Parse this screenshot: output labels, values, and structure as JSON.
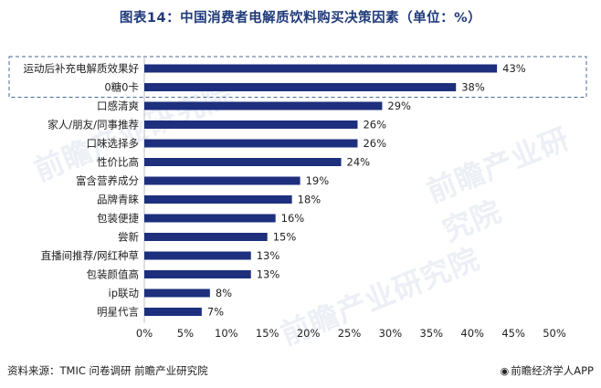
{
  "title": "图表14：中国消费者电解质饮料购买决策因素（单位：%）",
  "source": "资料来源：TMIC 问卷调研 前瞻产业研究院",
  "brand": "前瞻经济学人APP",
  "watermark": "前瞻产业研究院",
  "colors": {
    "bar": "#1e2f7d",
    "highlight_border": "#4a6a96",
    "title": "#1f3a7a"
  },
  "chart_data": {
    "type": "bar",
    "orientation": "horizontal",
    "categories": [
      "运动后补充电解质效果好",
      "0糖0卡",
      "口感清爽",
      "家人/朋友/同事推荐",
      "口味选择多",
      "性价比高",
      "富含营养成分",
      "品牌青睐",
      "包装便捷",
      "尝新",
      "直播间推荐/网红种草",
      "包装颜值高",
      "ip联动",
      "明星代言"
    ],
    "values": [
      43,
      38,
      29,
      26,
      26,
      24,
      19,
      18,
      16,
      15,
      13,
      13,
      8,
      7
    ],
    "value_labels": [
      "43%",
      "38%",
      "29%",
      "26%",
      "26%",
      "24%",
      "19%",
      "18%",
      "16%",
      "15%",
      "13%",
      "13%",
      "8%",
      "7%"
    ],
    "xlim": [
      0,
      50
    ],
    "x_ticks": [
      "0%",
      "5%",
      "10%",
      "15%",
      "20%",
      "25%",
      "30%",
      "35%",
      "40%",
      "45%",
      "50%"
    ],
    "highlighted_categories": [
      "运动后补充电解质效果好",
      "0糖0卡"
    ],
    "grid": false,
    "legend": "none"
  }
}
